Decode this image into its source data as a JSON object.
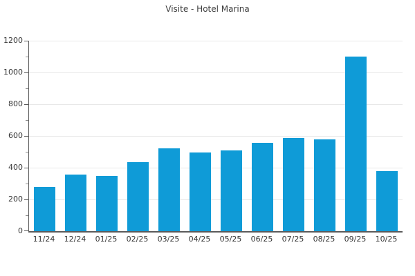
{
  "title": "Visite - Hotel Marina",
  "colors": {
    "bar": "#0f9bd7",
    "title_text": "#3d3d3d",
    "axis_line": "#5a5a5a",
    "tick_label": "#333333",
    "gridline": "#e8e8e8",
    "background": "#ffffff"
  },
  "chart_data": {
    "type": "bar",
    "title": "Visite - Hotel Marina",
    "categories": [
      "11/24",
      "12/24",
      "01/25",
      "02/25",
      "03/25",
      "04/25",
      "05/25",
      "06/25",
      "07/25",
      "08/25",
      "09/25",
      "10/25"
    ],
    "values": [
      280,
      355,
      350,
      435,
      520,
      495,
      510,
      555,
      585,
      580,
      1100,
      380
    ],
    "xlabel": "",
    "ylabel": "",
    "ylim": [
      0,
      1200
    ],
    "yticks": [
      0,
      200,
      400,
      600,
      800,
      1000,
      1200
    ],
    "minor_tick_interval": 100,
    "grid": "horizontal",
    "legend": "none",
    "bar_color": "#0f9bd7"
  }
}
